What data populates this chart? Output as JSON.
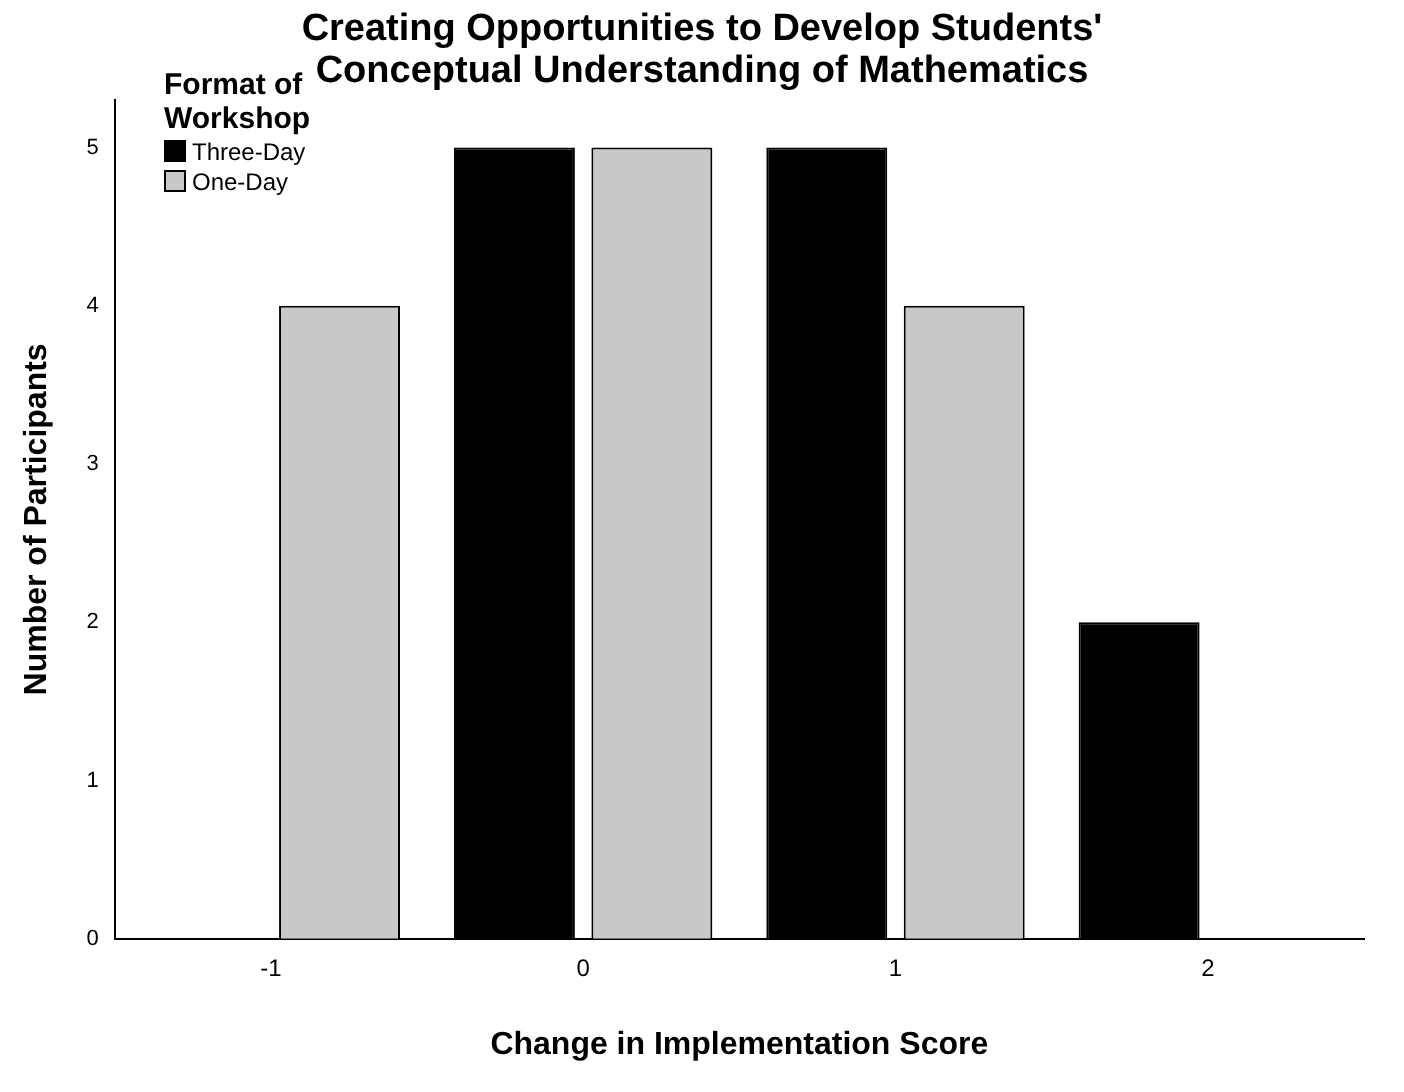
{
  "chart_data": {
    "type": "bar",
    "title": "Creating Opportunities to Develop Students' Conceptual Understanding of Mathematics",
    "xlabel": "Change in Implementation Score",
    "ylabel": "Number of Participants",
    "legend_title": "Format of Workshop",
    "categories": [
      "-1",
      "0",
      "1",
      "2"
    ],
    "series": [
      {
        "name": "Three-Day",
        "color": "#000000",
        "values": [
          0,
          5,
          5,
          2
        ]
      },
      {
        "name": "One-Day",
        "color": "#c8c8c8",
        "values": [
          4,
          5,
          4,
          0
        ]
      }
    ],
    "ylim": [
      0,
      5.3
    ],
    "yticks": [
      0,
      1,
      2,
      3,
      4,
      5
    ],
    "grid": false,
    "legend": "top left"
  }
}
